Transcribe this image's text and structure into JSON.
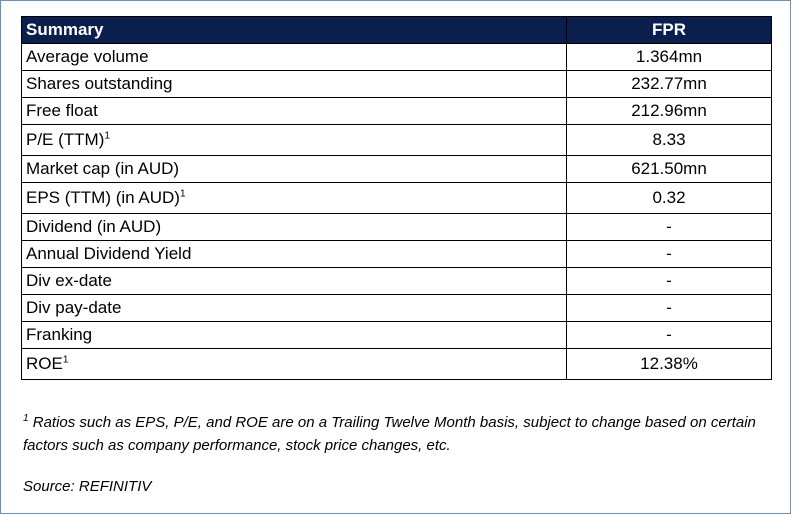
{
  "table": {
    "header": {
      "label": "Summary",
      "ticker": "FPR"
    },
    "rows": [
      {
        "label": "Average volume",
        "sup": "",
        "value": "1.364mn"
      },
      {
        "label": "Shares outstanding",
        "sup": "",
        "value": "232.77mn"
      },
      {
        "label": "Free float",
        "sup": "",
        "value": "212.96mn"
      },
      {
        "label": "P/E (TTM)",
        "sup": "1",
        "value": "8.33"
      },
      {
        "label": "Market cap (in AUD)",
        "sup": "",
        "value": "621.50mn"
      },
      {
        "label": "EPS (TTM) (in AUD)",
        "sup": "1",
        "value": "0.32"
      },
      {
        "label": "Dividend (in AUD)",
        "sup": "",
        "value": "-"
      },
      {
        "label": "Annual Dividend Yield",
        "sup": "",
        "value": "-"
      },
      {
        "label": "Div ex-date",
        "sup": "",
        "value": "-"
      },
      {
        "label": "Div pay-date",
        "sup": "",
        "value": "-"
      },
      {
        "label": "Franking",
        "sup": "",
        "value": "-"
      },
      {
        "label": "ROE",
        "sup": "1",
        "value": "12.38%"
      }
    ]
  },
  "footnote": {
    "marker": "1",
    "text": "Ratios such as EPS, P/E, and ROE are on a Trailing Twelve Month basis, subject to change based on certain factors such as company performance, stock price changes, etc."
  },
  "source": "Source: REFINITIV"
}
